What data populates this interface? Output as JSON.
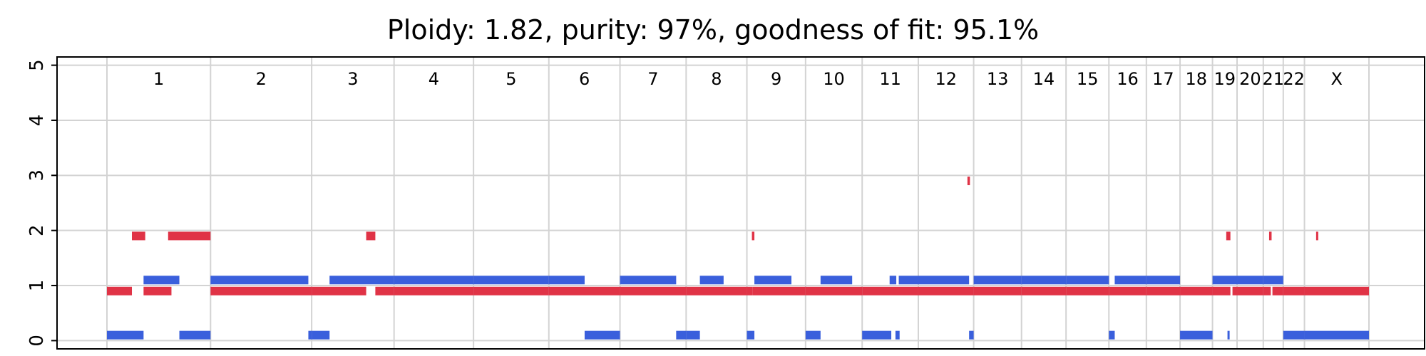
{
  "chart_data": {
    "type": "segments",
    "title": "Ploidy: 1.82, purity: 97%, goodness of fit: 95.1%",
    "ylim": [
      -0.15,
      5.15
    ],
    "yticks": [
      0,
      1,
      2,
      3,
      4,
      5
    ],
    "grid": true,
    "colors": {
      "major": "#e03346",
      "minor": "#3a5fdc",
      "grid": "#d3d3d3"
    },
    "chromosomes": [
      {
        "name": "1",
        "length": 249
      },
      {
        "name": "2",
        "length": 243
      },
      {
        "name": "3",
        "length": 198
      },
      {
        "name": "4",
        "length": 191
      },
      {
        "name": "5",
        "length": 181
      },
      {
        "name": "6",
        "length": 171
      },
      {
        "name": "7",
        "length": 159
      },
      {
        "name": "8",
        "length": 146
      },
      {
        "name": "9",
        "length": 141
      },
      {
        "name": "10",
        "length": 136
      },
      {
        "name": "11",
        "length": 135
      },
      {
        "name": "12",
        "length": 133
      },
      {
        "name": "13",
        "length": 115
      },
      {
        "name": "14",
        "length": 107
      },
      {
        "name": "15",
        "length": 103
      },
      {
        "name": "16",
        "length": 90
      },
      {
        "name": "17",
        "length": 81
      },
      {
        "name": "18",
        "length": 78
      },
      {
        "name": "19",
        "length": 59
      },
      {
        "name": "20",
        "length": 63
      },
      {
        "name": "21",
        "length": 48
      },
      {
        "name": "22",
        "length": 51
      },
      {
        "name": "X",
        "length": 155
      }
    ],
    "series": [
      {
        "color": "major",
        "segments": [
          {
            "chr": "1",
            "start": 0,
            "end": 60,
            "value": 0.9
          },
          {
            "chr": "1",
            "start": 60,
            "end": 92,
            "value": 1.9
          },
          {
            "chr": "1",
            "start": 88,
            "end": 155,
            "value": 0.9
          },
          {
            "chr": "1",
            "start": 147,
            "end": 249,
            "value": 1.9
          },
          {
            "chr": "2",
            "start": 0,
            "end": 243,
            "value": 0.9
          },
          {
            "chr": "3",
            "start": 0,
            "end": 131,
            "value": 0.9
          },
          {
            "chr": "3",
            "start": 131,
            "end": 153,
            "value": 1.9
          },
          {
            "chr": "3",
            "start": 153,
            "end": 198,
            "value": 0.9
          },
          {
            "chr": "4",
            "start": 0,
            "end": 191,
            "value": 0.9
          },
          {
            "chr": "5",
            "start": 0,
            "end": 181,
            "value": 0.9
          },
          {
            "chr": "6",
            "start": 0,
            "end": 171,
            "value": 0.9
          },
          {
            "chr": "7",
            "start": 0,
            "end": 159,
            "value": 0.9
          },
          {
            "chr": "8",
            "start": 0,
            "end": 146,
            "value": 0.9
          },
          {
            "chr": "9",
            "start": 0,
            "end": 14,
            "value": 0.9
          },
          {
            "chr": "9",
            "start": 12,
            "end": 18,
            "value": 1.9
          },
          {
            "chr": "9",
            "start": 14,
            "end": 141,
            "value": 0.9
          },
          {
            "chr": "10",
            "start": 0,
            "end": 136,
            "value": 0.9
          },
          {
            "chr": "11",
            "start": 0,
            "end": 135,
            "value": 0.9
          },
          {
            "chr": "12",
            "start": 0,
            "end": 133,
            "value": 0.9
          },
          {
            "chr": "12",
            "start": 118,
            "end": 124,
            "value": 2.9
          },
          {
            "chr": "13",
            "start": 0,
            "end": 115,
            "value": 0.9
          },
          {
            "chr": "14",
            "start": 0,
            "end": 107,
            "value": 0.9
          },
          {
            "chr": "15",
            "start": 0,
            "end": 103,
            "value": 0.9
          },
          {
            "chr": "16",
            "start": 0,
            "end": 90,
            "value": 0.9
          },
          {
            "chr": "17",
            "start": 0,
            "end": 81,
            "value": 0.9
          },
          {
            "chr": "18",
            "start": 0,
            "end": 78,
            "value": 0.9
          },
          {
            "chr": "19",
            "start": 0,
            "end": 43,
            "value": 0.9
          },
          {
            "chr": "19",
            "start": 33,
            "end": 43,
            "value": 1.9
          },
          {
            "chr": "19",
            "start": 48,
            "end": 59,
            "value": 0.9
          },
          {
            "chr": "20",
            "start": 0,
            "end": 63,
            "value": 0.9
          },
          {
            "chr": "21",
            "start": 0,
            "end": 18,
            "value": 0.9
          },
          {
            "chr": "21",
            "start": 14,
            "end": 20,
            "value": 1.9
          },
          {
            "chr": "21",
            "start": 22,
            "end": 48,
            "value": 0.9
          },
          {
            "chr": "22",
            "start": 0,
            "end": 51,
            "value": 0.9
          },
          {
            "chr": "X",
            "start": 0,
            "end": 155,
            "value": 0.9
          },
          {
            "chr": "X",
            "start": 28,
            "end": 33,
            "value": 1.9
          }
        ]
      },
      {
        "color": "minor",
        "segments": [
          {
            "chr": "1",
            "start": 0,
            "end": 88,
            "value": 0.1
          },
          {
            "chr": "1",
            "start": 88,
            "end": 174,
            "value": 1.1
          },
          {
            "chr": "1",
            "start": 174,
            "end": 249,
            "value": 0.1
          },
          {
            "chr": "2",
            "start": 0,
            "end": 235,
            "value": 1.1
          },
          {
            "chr": "2",
            "start": 235,
            "end": 243,
            "value": 0.1
          },
          {
            "chr": "3",
            "start": 0,
            "end": 43,
            "value": 0.1
          },
          {
            "chr": "3",
            "start": 43,
            "end": 198,
            "value": 1.1
          },
          {
            "chr": "4",
            "start": 0,
            "end": 191,
            "value": 1.1
          },
          {
            "chr": "5",
            "start": 0,
            "end": 181,
            "value": 1.1
          },
          {
            "chr": "6",
            "start": 0,
            "end": 86,
            "value": 1.1
          },
          {
            "chr": "6",
            "start": 86,
            "end": 171,
            "value": 0.1
          },
          {
            "chr": "7",
            "start": 0,
            "end": 135,
            "value": 1.1
          },
          {
            "chr": "7",
            "start": 135,
            "end": 159,
            "value": 0.1
          },
          {
            "chr": "8",
            "start": 0,
            "end": 33,
            "value": 0.1
          },
          {
            "chr": "8",
            "start": 33,
            "end": 90,
            "value": 1.1
          },
          {
            "chr": "9",
            "start": 0,
            "end": 18,
            "value": 0.1
          },
          {
            "chr": "9",
            "start": 18,
            "end": 107,
            "value": 1.1
          },
          {
            "chr": "10",
            "start": 0,
            "end": 36,
            "value": 0.1
          },
          {
            "chr": "10",
            "start": 36,
            "end": 112,
            "value": 1.1
          },
          {
            "chr": "11",
            "start": 0,
            "end": 70,
            "value": 0.1
          },
          {
            "chr": "11",
            "start": 66,
            "end": 82,
            "value": 1.1
          },
          {
            "chr": "11",
            "start": 80,
            "end": 90,
            "value": 0.1
          },
          {
            "chr": "11",
            "start": 88,
            "end": 135,
            "value": 1.1
          },
          {
            "chr": "12",
            "start": 0,
            "end": 122,
            "value": 1.1
          },
          {
            "chr": "12",
            "start": 122,
            "end": 133,
            "value": 0.1
          },
          {
            "chr": "13",
            "start": 0,
            "end": 115,
            "value": 1.1
          },
          {
            "chr": "14",
            "start": 0,
            "end": 107,
            "value": 1.1
          },
          {
            "chr": "15",
            "start": 0,
            "end": 103,
            "value": 1.1
          },
          {
            "chr": "16",
            "start": 0,
            "end": 14,
            "value": 0.1
          },
          {
            "chr": "16",
            "start": 14,
            "end": 90,
            "value": 1.1
          },
          {
            "chr": "17",
            "start": 0,
            "end": 81,
            "value": 1.1
          },
          {
            "chr": "18",
            "start": 0,
            "end": 78,
            "value": 0.1
          },
          {
            "chr": "19",
            "start": 0,
            "end": 59,
            "value": 1.1
          },
          {
            "chr": "19",
            "start": 36,
            "end": 39,
            "value": 0.1
          },
          {
            "chr": "20",
            "start": 0,
            "end": 63,
            "value": 1.1
          },
          {
            "chr": "21",
            "start": 0,
            "end": 48,
            "value": 1.1
          },
          {
            "chr": "22",
            "start": 0,
            "end": 51,
            "value": 0.1
          },
          {
            "chr": "X",
            "start": 0,
            "end": 155,
            "value": 0.1
          }
        ]
      }
    ]
  }
}
